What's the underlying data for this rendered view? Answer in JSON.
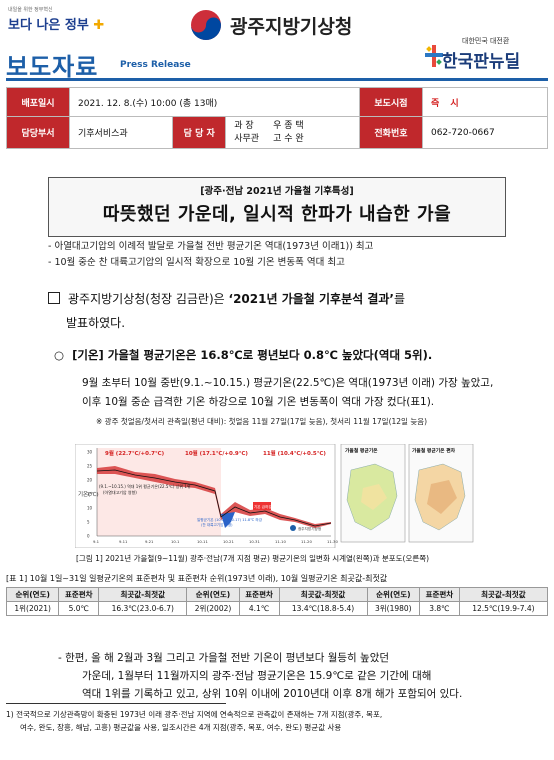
{
  "header": {
    "slogan_small": "내일을 위한 정부혁신",
    "slogan_main": "보다 나은 정부",
    "agency": "광주지방기상청",
    "doc_title": "보도자료",
    "doc_title_en": "Press Release",
    "brand_small": "대한민국 대전환",
    "brand_main": "한국판뉴딜"
  },
  "info": {
    "date_label": "배포일시",
    "date_value": "2021. 12. 8.(수) 10:00 (총 13매)",
    "embargo_label": "보도시점",
    "embargo_value": "즉 시",
    "dept_label": "담당부서",
    "dept_value": "기후서비스과",
    "person_label": "담 당 자",
    "person_roles": [
      "과 장",
      "사무관"
    ],
    "person_names": [
      "우 종 택",
      "고 수 완"
    ],
    "phone_label": "전화번호",
    "phone_value": "062-720-0667"
  },
  "headline": {
    "sub": "[광주·전남 2021년 가을철 기후특성]",
    "main": "따뜻했던 가운데, 일시적 한파가 내습한 가을",
    "bullets": [
      "- 아열대고기압의 이례적 발달로 가을철 전반 평균기온 역대(1973년 이래1)) 최고",
      "- 10월 중순 찬 대륙고기압의 일시적 확장으로 10월 기온 변동폭 역대 최고"
    ]
  },
  "body": {
    "lead_line1_pre": "광주지방기상청(청장 김금란)은 ",
    "lead_line1_quote": "‘2021년 가을철 기후분석 결과’",
    "lead_line1_post": "를",
    "lead_line2": "발표하였다.",
    "section_marker": "○",
    "section_title": "[기온] 가을철 평균기온은 16.8℃로 평년보다 0.8℃ 높았다(역대 5위).",
    "para_line1": "9월 초부터 10월 중반(9.1.~10.15.) 평균기온(22.5℃)은 역대(1973년 이래) 가장 높았고,",
    "para_line2": "이후 10월 중순 급격한 기온 하강으로 10월 기온 변동폭이 역대 가장 컸다(표1).",
    "note": "※ 광주 첫얼음/첫서리 관측일(평년 대비): 첫얼음 11월 27일(17일 늦음), 첫서리 11월 17일(12일 늦음)"
  },
  "figure": {
    "caption": "[그림 1] 2021년 가을철(9~11월) 광주·전남(7개 지점 평균) 평균기온의 일변화 시계열(왼쪽)과 분포도(오른쪽)",
    "month_labels": [
      "9월 (22.7℃/+0.7℃)",
      "10월 (17.1℃/+0.9℃)",
      "11월 (10.4℃/+0.5℃)"
    ],
    "y_axis_label": "기온(℃)",
    "annotation_1": "(9.1.~10.15.) 역대 1위 평균기온(22.5℃) 상위 1위",
    "annotation_2": "(아열대고기압 영향)",
    "annotation_3": "기온 급하강",
    "annotation_4": "일평균기온 (10.15→10.17) 11.8℃ 하강",
    "annotation_5": "(찬 대륙고기압 영향)",
    "legend": "광주지방기상청",
    "map_titles": [
      "가을철 평균기온",
      "가을철 평균기온 편차"
    ],
    "ticks_y": [
      "30",
      "25",
      "20",
      "15",
      "10",
      "5",
      "0"
    ],
    "ticks_x": [
      "9.1",
      "9.11",
      "9.21",
      "10.1",
      "10.11",
      "10.21",
      "10.31",
      "11.10",
      "11.20",
      "11.30"
    ]
  },
  "table": {
    "caption": "[표 1] 10월 1일~31일 일평균기온의 표준편차 및 표준편차 순위(1973년 이래), 10월 일평균기온 최곳값-최젓값",
    "headers": [
      "순위(연도)",
      "표준편차",
      "최곳값-최젓값",
      "순위(연도)",
      "표준편차",
      "최곳값-최젓값",
      "순위(연도)",
      "표준편차",
      "최곳값-최젓값"
    ],
    "row": [
      "1위(2021)",
      "5.0℃",
      "16.3℃(23.0-6.7)",
      "2위(2002)",
      "4.1℃",
      "13.4℃(18.8-5.4)",
      "3위(1980)",
      "3.8℃",
      "12.5℃(19.9-7.4)"
    ]
  },
  "closing": {
    "line1": "- 한편, 올 해 2월과 3월 그리고 가을철 전반 기온이 평년보다 월등히 높았던",
    "line2": "가운데, 1월부터 11월까지의 광주·전남 평균기온은 15.9℃로 같은 기간에 대해",
    "line3": "역대 1위를 기록하고 있고, 상위 10위 이내에 2010년대 이후 8개 해가 포함되어 있다."
  },
  "footnote": {
    "marker": "1)",
    "line1": "전국적으로 기상관측망이 확충된 1973년 이래 광주·전남 지역에 연속적으로 관측값이 존재하는 7개 지점(광주, 목포,",
    "line2": "여수, 완도, 장흥, 해남, 고흥) 평균값을 사용, 일조시간은 4개 지점(광주, 목포, 여수, 완도) 평균값 사용"
  },
  "colors": {
    "brand_blue": "#1d5fa8",
    "label_red": "#c0282c",
    "positive_anom": "#d63a3a",
    "negative_anom": "#2a63c9"
  }
}
